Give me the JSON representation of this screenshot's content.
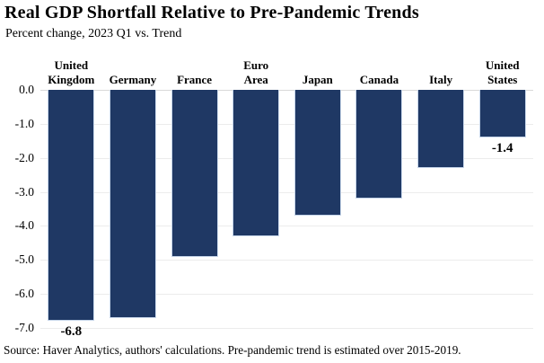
{
  "chart_data": {
    "type": "bar",
    "title": "Real GDP Shortfall Relative to Pre-Pandemic Trends",
    "subtitle": "Percent change, 2023 Q1 vs. Trend",
    "source_note": "Source: Haver Analytics, authors' calculations. Pre-pandemic trend is estimated over 2015-2019.",
    "categories": [
      "United Kingdom",
      "Germany",
      "France",
      "Euro Area",
      "Japan",
      "Canada",
      "Italy",
      "United States"
    ],
    "category_label_lines": [
      [
        "United",
        "Kingdom"
      ],
      [
        "Germany"
      ],
      [
        "France"
      ],
      [
        "Euro",
        "Area"
      ],
      [
        "Japan"
      ],
      [
        "Canada"
      ],
      [
        "Italy"
      ],
      [
        "United",
        "States"
      ]
    ],
    "values": [
      -6.8,
      -6.7,
      -4.9,
      -4.3,
      -3.7,
      -3.2,
      -2.3,
      -1.4
    ],
    "bar_value_labels": [
      "-6.8",
      "",
      "",
      "",
      "",
      "",
      "",
      "-1.4"
    ],
    "xlabel": "",
    "ylabel": "",
    "ylim": [
      -7.0,
      0.0
    ],
    "ytick_labels": [
      "0.0",
      "-1.0",
      "-2.0",
      "-3.0",
      "-4.0",
      "-5.0",
      "-6.0",
      "-7.0"
    ],
    "grid": true,
    "legend_position": "none"
  },
  "colors": {
    "bar_fill": "#1F3864",
    "bar_edge": "#C7D6EA",
    "gridline": "#ECECEC",
    "zero_line": "#D9D9D9",
    "text": "#000000",
    "background": "#FFFFFF"
  }
}
